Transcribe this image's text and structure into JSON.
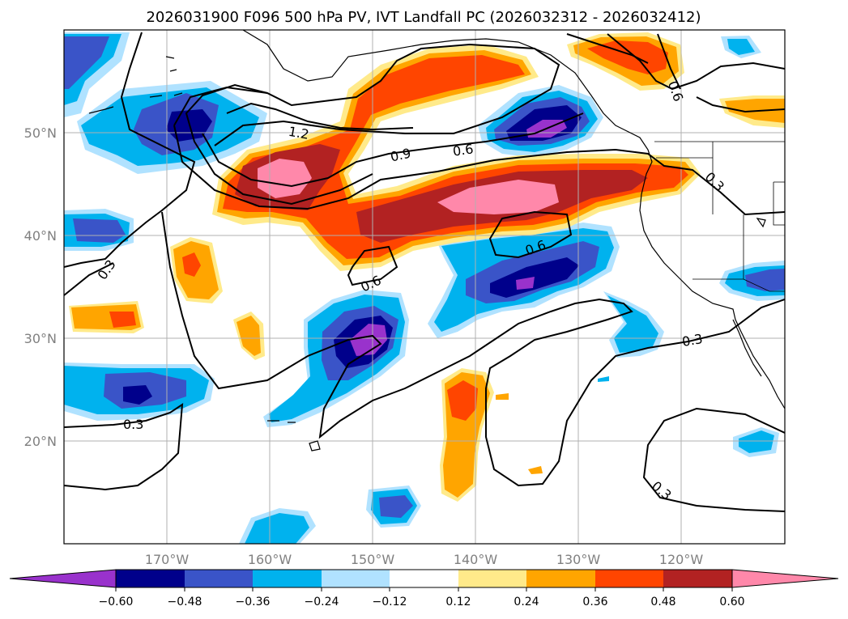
{
  "title": "2026031900 F096 500 hPa PV, IVT Landfall PC (2026032312 - 2026032412)",
  "colors": {
    "-0.72": "#9932cc",
    "-0.60": "#00008b",
    "-0.48": "#3a54c8",
    "-0.36": "#00b2ee",
    "-0.24": "#b0e2ff",
    "-0.12": "#ffffff",
    "0.12": "#ffea8a",
    "0.24": "#ffa500",
    "0.36": "#ff4500",
    "0.48": "#b22222",
    "0.60": "#ff88aa"
  },
  "map": {
    "lon_range": [
      -180,
      -110
    ],
    "lat_range": [
      10,
      60
    ],
    "lat_labels": [
      "20°N",
      "30°N",
      "40°N",
      "50°N"
    ],
    "lon_labels": [
      "170°W",
      "160°W",
      "150°W",
      "140°W",
      "130°W",
      "120°W"
    ],
    "contour_labels": [
      "1.2",
      "0.9",
      "0.6",
      "0.6",
      "0.6",
      "0.3",
      "0.3",
      "0.3",
      "0.3",
      "0.3",
      "0.6"
    ]
  },
  "colorbar": {
    "ticks": [
      "−0.60",
      "−0.48",
      "−0.36",
      "−0.24",
      "−0.12",
      "0.12",
      "0.24",
      "0.36",
      "0.48",
      "0.60"
    ],
    "extend": "both"
  }
}
